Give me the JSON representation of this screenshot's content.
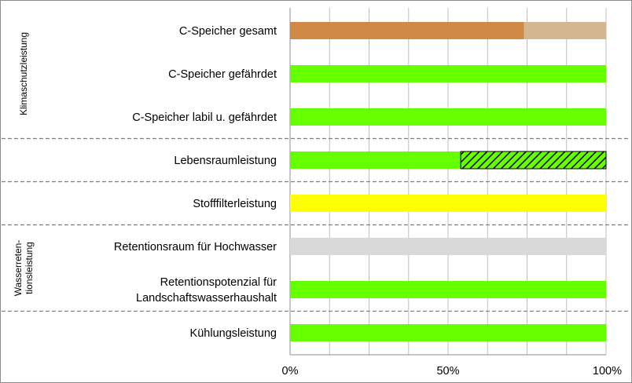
{
  "chart_data": {
    "type": "bar",
    "orientation": "horizontal",
    "stacked": true,
    "title": "",
    "xlabel": "",
    "ylabel": "",
    "xlim": [
      0,
      100
    ],
    "x_ticks": [
      "0%",
      "50%",
      "100%"
    ],
    "grid": "vertical gridlines every 12.5%",
    "legend": "none",
    "groups": [
      {
        "label": "Klimaschutzleistung",
        "rows": [
          0,
          2
        ]
      },
      {
        "label": "Wasserreten-\ntionsleistung",
        "rows": [
          5,
          6
        ]
      }
    ],
    "categories": [
      "C-Speicher gesamt",
      "C-Speicher gefährdet",
      "C-Speicher labil u. gefährdet",
      "Lebensraumleistung",
      "Stofffilterleistung",
      "Retentionsraum für Hochwasser",
      "Retentionspotenzial für\nLandschaftswasserhaushalt",
      "Kühlungsleistung"
    ],
    "bars": [
      [
        {
          "value": 74,
          "color": "#d08a45",
          "pattern": "solid"
        },
        {
          "value": 26,
          "color": "#d4b690",
          "pattern": "solid"
        }
      ],
      [
        {
          "value": 100,
          "color": "#66ff00",
          "pattern": "solid"
        }
      ],
      [
        {
          "value": 100,
          "color": "#66ff00",
          "pattern": "solid"
        }
      ],
      [
        {
          "value": 54,
          "color": "#66ff00",
          "pattern": "solid"
        },
        {
          "value": 46,
          "color": "#66ff00",
          "pattern": "hatched"
        }
      ],
      [
        {
          "value": 100,
          "color": "#ffff00",
          "pattern": "solid"
        }
      ],
      [
        {
          "value": 100,
          "color": "#d9d9d9",
          "pattern": "solid"
        }
      ],
      [
        {
          "value": 100,
          "color": "#66ff00",
          "pattern": "solid"
        }
      ],
      [
        {
          "value": 100,
          "color": "#66ff00",
          "pattern": "solid"
        }
      ]
    ],
    "separators_after_rows": [
      2,
      3,
      4,
      6
    ]
  }
}
